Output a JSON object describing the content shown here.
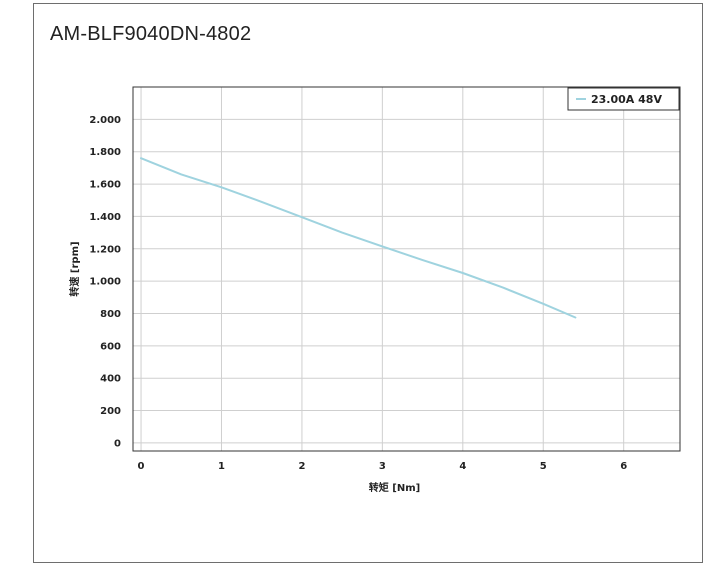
{
  "page": {
    "title": "AM-BLF9040DN-4802"
  },
  "chart_data": {
    "type": "line",
    "title": "AM-BLF9040DN-4802",
    "xlabel": "转矩 [Nm]",
    "ylabel": "转速 [rpm]",
    "xlim": [
      -0.1,
      6.7
    ],
    "ylim": [
      -50,
      2200
    ],
    "x_ticks": [
      0,
      1,
      2,
      3,
      4,
      5,
      6
    ],
    "x_tick_labels": [
      "0",
      "1",
      "2",
      "3",
      "4",
      "5",
      "6"
    ],
    "y_ticks": [
      0,
      200,
      400,
      600,
      800,
      1000,
      1200,
      1400,
      1600,
      1800,
      2000
    ],
    "y_tick_labels": [
      "0",
      "200",
      "400",
      "600",
      "800",
      "1.000",
      "1.200",
      "1.400",
      "1.600",
      "1.800",
      "2.000"
    ],
    "grid": true,
    "legend_position": "top-right",
    "series": [
      {
        "name": "23.00A 48V",
        "color": "#9fd3df",
        "x": [
          0.0,
          0.5,
          1.0,
          1.5,
          2.0,
          2.5,
          3.0,
          3.5,
          4.0,
          4.5,
          5.0,
          5.4
        ],
        "y": [
          1760,
          1660,
          1580,
          1490,
          1395,
          1300,
          1215,
          1130,
          1050,
          960,
          860,
          775
        ]
      }
    ]
  }
}
